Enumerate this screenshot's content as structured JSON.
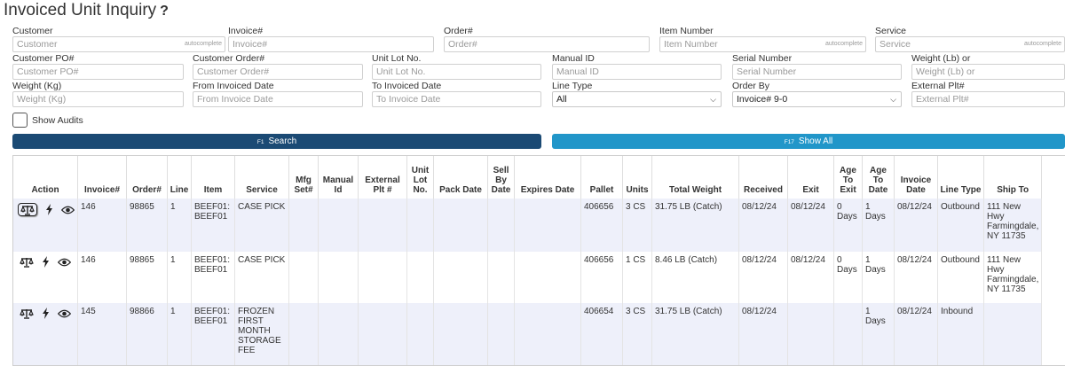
{
  "page": {
    "title": "Invoiced Unit Inquiry",
    "help": "?"
  },
  "filters": {
    "customer": {
      "label": "Customer",
      "placeholder": "Customer",
      "hint": "autocomplete"
    },
    "invoice": {
      "label": "Invoice#",
      "placeholder": "Invoice#"
    },
    "order": {
      "label": "Order#",
      "placeholder": "Order#"
    },
    "item_number": {
      "label": "Item Number",
      "placeholder": "Item Number",
      "hint": "autocomplete"
    },
    "service": {
      "label": "Service",
      "placeholder": "Service",
      "hint": "autocomplete"
    },
    "customer_po": {
      "label": "Customer PO#",
      "placeholder": "Customer PO#"
    },
    "customer_order": {
      "label": "Customer Order#",
      "placeholder": "Customer Order#"
    },
    "unit_lot": {
      "label": "Unit Lot No.",
      "placeholder": "Unit Lot No."
    },
    "manual_id": {
      "label": "Manual ID",
      "placeholder": "Manual ID"
    },
    "serial_number": {
      "label": "Serial Number",
      "placeholder": "Serial Number"
    },
    "weight_lb": {
      "label": "Weight (Lb) or",
      "placeholder": "Weight (Lb) or"
    },
    "weight_kg": {
      "label": "Weight (Kg)",
      "placeholder": "Weight (Kg)"
    },
    "from_date": {
      "label": "From Invoiced Date",
      "placeholder": "From Invoice Date"
    },
    "to_date": {
      "label": "To Invoiced Date",
      "placeholder": "To Invoice Date"
    },
    "line_type": {
      "label": "Line Type",
      "value": "All"
    },
    "order_by": {
      "label": "Order By",
      "value": "Invoice# 9-0"
    },
    "external_plt": {
      "label": "External Plt#",
      "placeholder": "External Plt#"
    },
    "show_audits": {
      "label": "Show Audits"
    }
  },
  "buttons": {
    "search": {
      "key": "F1",
      "label": "Search"
    },
    "show_all": {
      "key": "F17",
      "label": "Show All"
    }
  },
  "table": {
    "headers": [
      "Action",
      "Invoice#",
      "Order#",
      "Line",
      "Item",
      "Service",
      "Mfg Set#",
      "Manual Id",
      "External Plt #",
      "Unit Lot No.",
      "Pack Date",
      "Sell By Date",
      "Expires Date",
      "Pallet",
      "Units",
      "Total Weight",
      "Received",
      "Exit",
      "Age To Exit",
      "Age To Date",
      "Invoice Date",
      "Line Type",
      "Ship To"
    ],
    "rows": [
      {
        "invoice": "146",
        "order": "98865",
        "line": "1",
        "item": "BEEF01: BEEF01",
        "service": "CASE PICK",
        "mfg_set": "",
        "manual_id": "",
        "external_plt": "",
        "unit_lot": "",
        "pack_date": "",
        "sell_by": "",
        "expires": "",
        "pallet": "406656",
        "units": "3 CS",
        "total_weight": "31.75 LB (Catch)",
        "received": "08/12/24",
        "exit": "08/12/24",
        "age_to_exit": "0 Days",
        "age_to_date": "1 Days",
        "invoice_date": "08/12/24",
        "line_type": "Outbound",
        "ship_to": "111 New Hwy Farmingdale, NY 11735"
      },
      {
        "invoice": "146",
        "order": "98865",
        "line": "1",
        "item": "BEEF01: BEEF01",
        "service": "CASE PICK",
        "mfg_set": "",
        "manual_id": "",
        "external_plt": "",
        "unit_lot": "",
        "pack_date": "",
        "sell_by": "",
        "expires": "",
        "pallet": "406656",
        "units": "1 CS",
        "total_weight": "8.46 LB (Catch)",
        "received": "08/12/24",
        "exit": "08/12/24",
        "age_to_exit": "0 Days",
        "age_to_date": "1 Days",
        "invoice_date": "08/12/24",
        "line_type": "Outbound",
        "ship_to": "111 New Hwy Farmingdale, NY 11735"
      },
      {
        "invoice": "145",
        "order": "98866",
        "line": "1",
        "item": "BEEF01: BEEF01",
        "service": "FROZEN FIRST MONTH STORAGE FEE",
        "mfg_set": "",
        "manual_id": "",
        "external_plt": "",
        "unit_lot": "",
        "pack_date": "",
        "sell_by": "",
        "expires": "",
        "pallet": "406654",
        "units": "3 CS",
        "total_weight": "31.75 LB (Catch)",
        "received": "08/12/24",
        "exit": "",
        "age_to_exit": "",
        "age_to_date": "1 Days",
        "invoice_date": "08/12/24",
        "line_type": "Inbound",
        "ship_to": ""
      }
    ]
  },
  "icons": {
    "scale": "scale-icon",
    "bolt": "lightning-bolt-icon",
    "view": "eye-icon"
  }
}
